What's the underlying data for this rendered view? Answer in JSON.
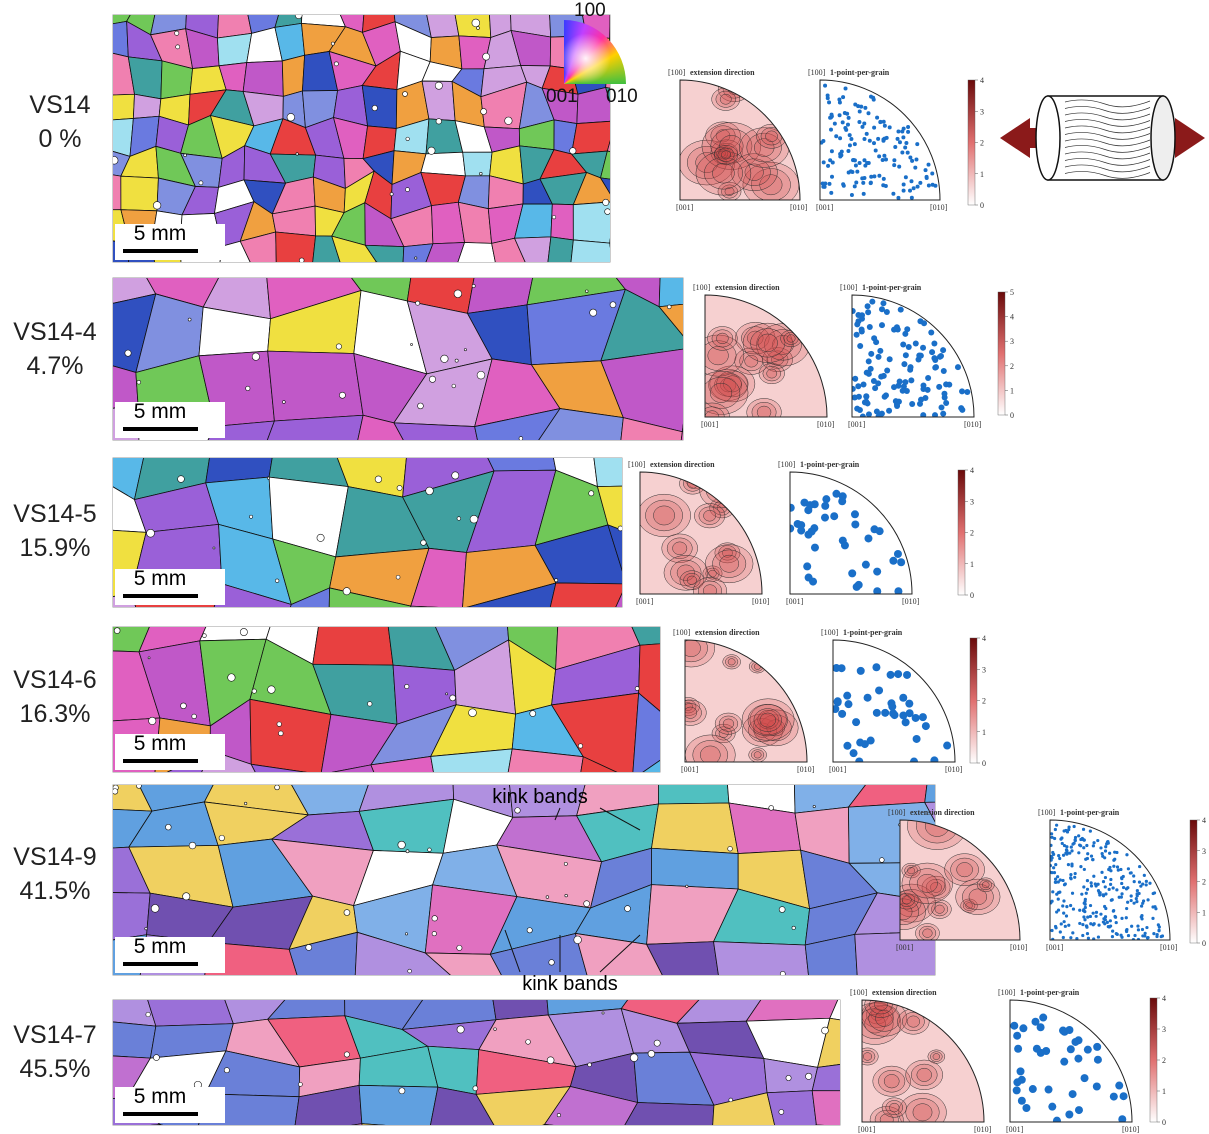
{
  "color_key": {
    "top": "100",
    "bottom_left": "001",
    "bottom_right": "010"
  },
  "panels": [
    {
      "sample": "VS14",
      "strain": "0 %",
      "scale_bar": "5 mm",
      "density_title": "extension direction",
      "points_title": "1-point-per-grain",
      "top_pole": "[100]",
      "left_pole": "[001]",
      "right_pole": "[010]",
      "colorbar_ticks": [
        0,
        1,
        2,
        3,
        4
      ]
    },
    {
      "sample": "VS14-4",
      "strain": "4.7%",
      "scale_bar": "5 mm",
      "density_title": "extension direction",
      "points_title": "1-point-per-grain",
      "top_pole": "[100]",
      "left_pole": "[001]",
      "right_pole": "[010]",
      "colorbar_ticks": [
        0,
        1,
        2,
        3,
        4,
        5
      ]
    },
    {
      "sample": "VS14-5",
      "strain": "15.9%",
      "scale_bar": "5 mm",
      "density_title": "extension direction",
      "points_title": "1-point-per-grain",
      "top_pole": "[100]",
      "left_pole": "[001]",
      "right_pole": "[010]",
      "colorbar_ticks": [
        0,
        1,
        2,
        3,
        4
      ]
    },
    {
      "sample": "VS14-6",
      "strain": "16.3%",
      "scale_bar": "5 mm",
      "density_title": "extension direction",
      "points_title": "1-point-per-grain",
      "top_pole": "[100]",
      "left_pole": "[001]",
      "right_pole": "[010]",
      "colorbar_ticks": [
        0,
        1,
        2,
        3,
        4
      ]
    },
    {
      "sample": "VS14-9",
      "strain": "41.5%",
      "scale_bar": "5 mm",
      "density_title": "extension direction",
      "points_title": "1-point-per-grain",
      "top_pole": "[100]",
      "left_pole": "[001]",
      "right_pole": "[010]",
      "colorbar_ticks": [
        0,
        1,
        2,
        3,
        4
      ]
    },
    {
      "sample": "VS14-7",
      "strain": "45.5%",
      "scale_bar": "5 mm",
      "density_title": "extension direction",
      "points_title": "1-point-per-grain",
      "top_pole": "[100]",
      "left_pole": "[001]",
      "right_pole": "[010]",
      "colorbar_ticks": [
        0,
        1,
        2,
        3,
        4
      ]
    }
  ],
  "annotations": {
    "kink_bands_top": "kink bands",
    "kink_bands_bottom": "kink bands"
  }
}
